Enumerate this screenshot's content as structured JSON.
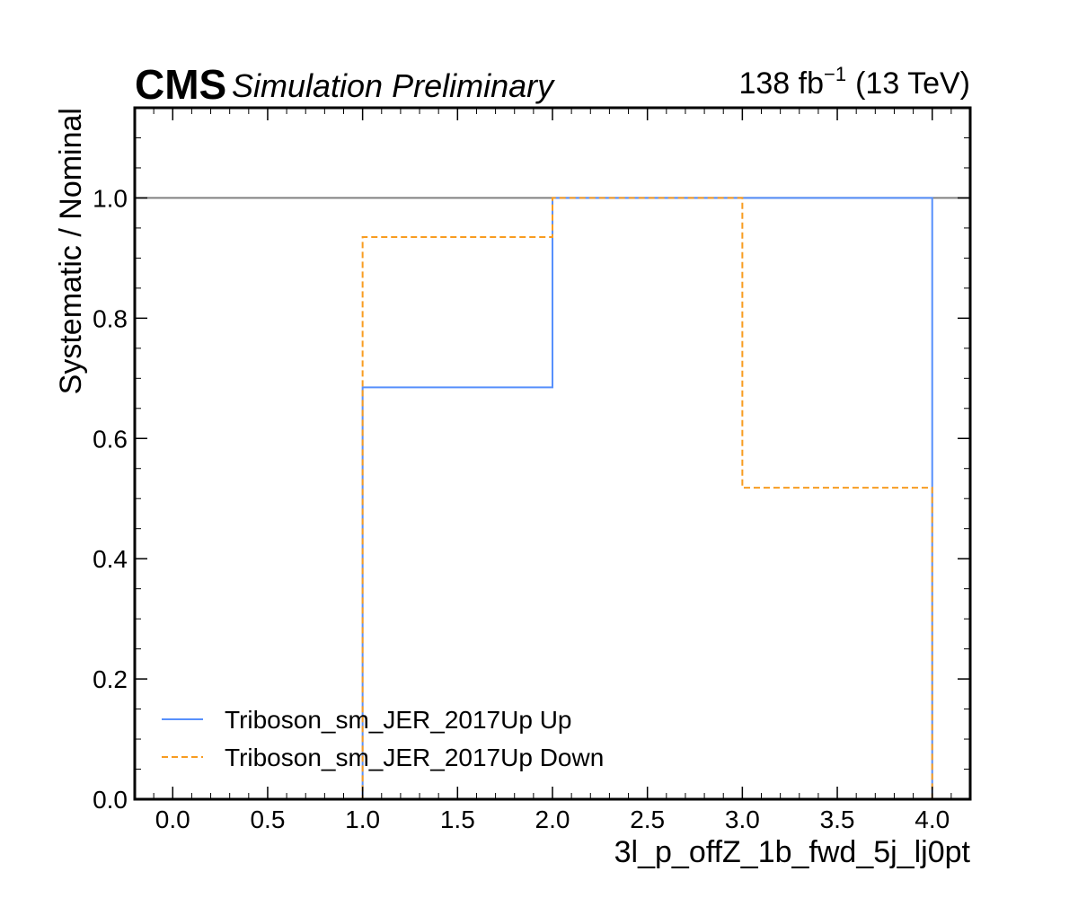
{
  "header": {
    "cms_label": "CMS",
    "cms_sublabel": "Simulation Preliminary",
    "lumi_value": "138 fb",
    "lumi_exponent": "−1",
    "lumi_energy": "(13 TeV)"
  },
  "chart_data": {
    "type": "line",
    "style": "step histogram ratio",
    "xlabel": "3l_p_offZ_1b_fwd_5j_lj0pt",
    "ylabel": "Systematic / Nominal",
    "xlim": [
      -0.2,
      4.2
    ],
    "ylim": [
      0.0,
      1.15
    ],
    "x_ticks": [
      0.0,
      0.5,
      1.0,
      1.5,
      2.0,
      2.5,
      3.0,
      3.5,
      4.0
    ],
    "x_tick_labels": [
      "0.0",
      "0.5",
      "1.0",
      "1.5",
      "2.0",
      "2.5",
      "3.0",
      "3.5",
      "4.0"
    ],
    "y_ticks": [
      0.0,
      0.2,
      0.4,
      0.6,
      0.8,
      1.0
    ],
    "y_tick_labels": [
      "0.0",
      "0.2",
      "0.4",
      "0.6",
      "0.8",
      "1.0"
    ],
    "bin_edges": [
      0,
      1,
      2,
      3,
      4
    ],
    "reference_line": {
      "y": 1.0,
      "color": "#808080"
    },
    "grid": false,
    "legend_position": "bottom-left",
    "series": [
      {
        "name": "Triboson_sm_JER_2017Up Up",
        "color": "#5790fc",
        "dashed": false,
        "values": [
          0.0,
          0.685,
          1.0,
          1.0
        ]
      },
      {
        "name": "Triboson_sm_JER_2017Up Down",
        "color": "#f89c20",
        "dashed": true,
        "values": [
          0.0,
          0.935,
          1.0,
          0.518
        ]
      }
    ]
  }
}
